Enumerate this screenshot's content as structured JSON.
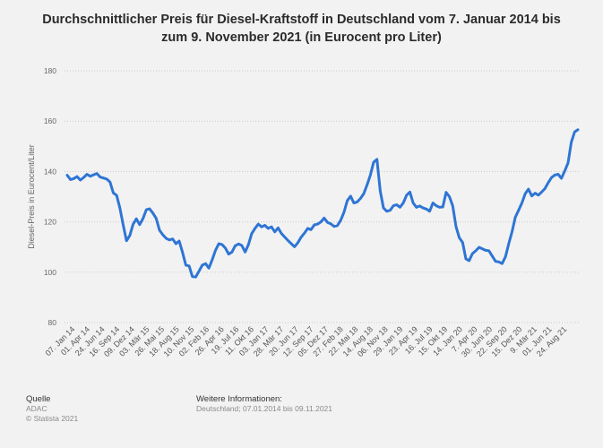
{
  "chart_data": {
    "type": "line",
    "title": "Durchschnittlicher Preis für Diesel-Kraftstoff in Deutschland vom 7. Januar 2014 bis zum 9. November 2021 (in Eurocent pro Liter)",
    "title_lines": [
      "Durchschnittlicher Preis für Diesel-Kraftstoff in Deutschland vom 7. Januar 2014 bis",
      "zum 9. November 2021 (in Eurocent pro Liter)"
    ],
    "xlabel": "",
    "ylabel": "Diesel-Preis in Eurocent/Liter",
    "ylim": [
      80,
      180
    ],
    "yticks": [
      80,
      100,
      120,
      140,
      160,
      180
    ],
    "grid": true,
    "line_color": "#2e75d4",
    "x_tick_labels": [
      "07. Jan 14",
      "01. Apr 14",
      "24. Jun 14",
      "16. Sep 14",
      "09. Dez 14",
      "03. Mär 15",
      "26. Mai 15",
      "18. Aug 15",
      "10. Nov 15",
      "02. Feb 16",
      "26. Apr 16",
      "19. Jul 16",
      "11. Okt 16",
      "03. Jan 17",
      "28. Mär 17",
      "20. Jun 17",
      "12. Sep 17",
      "05. Dez 17",
      "27. Feb 18",
      "22. Mai 18",
      "14. Aug 18",
      "06. Nov 18",
      "29. Jan 19",
      "23. Apr 19",
      "16. Jul 19",
      "15. Okt 19",
      "14. Jan 20",
      "7. Apr 20",
      "30. Juni 20",
      "22. Sep 20",
      "15. Dez 20",
      "9. Mär 21",
      "01. Jun 21",
      "24. Aug 21"
    ],
    "series": [
      {
        "name": "Diesel-Preis",
        "values": [
          138.5,
          136.8,
          137.2,
          138.0,
          136.6,
          137.6,
          138.9,
          138.1,
          138.7,
          139.2,
          137.8,
          137.4,
          137.0,
          135.8,
          131.5,
          130.5,
          125.5,
          118.8,
          112.5,
          114.6,
          119.0,
          121.2,
          118.9,
          121.3,
          124.8,
          125.2,
          123.5,
          121.4,
          116.7,
          114.9,
          113.5,
          112.8,
          113.2,
          111.3,
          112.4,
          107.9,
          102.8,
          102.5,
          98.3,
          98.1,
          100.4,
          102.8,
          103.4,
          101.6,
          104.9,
          108.7,
          111.3,
          111.0,
          109.6,
          107.2,
          108.0,
          110.5,
          111.2,
          110.6,
          108.0,
          111.0,
          115.3,
          117.4,
          119.1,
          118.0,
          118.6,
          117.4,
          118.0,
          116.0,
          117.6,
          115.4,
          114.0,
          112.6,
          111.3,
          110.1,
          111.7,
          113.9,
          115.5,
          117.4,
          116.9,
          118.8,
          119.1,
          120.0,
          121.5,
          119.8,
          119.2,
          118.2,
          118.5,
          120.6,
          123.8,
          128.4,
          130.2,
          127.5,
          127.9,
          129.3,
          131.2,
          134.6,
          138.5,
          143.7,
          144.8,
          132.2,
          125.5,
          124.2,
          124.6,
          126.4,
          126.8,
          125.8,
          127.5,
          130.6,
          131.8,
          127.5,
          125.8,
          126.3,
          125.5,
          125.1,
          124.2,
          127.5,
          126.4,
          125.8,
          125.9,
          131.7,
          130.0,
          126.3,
          118.2,
          113.7,
          111.8,
          105.3,
          104.6,
          107.4,
          108.5,
          109.9,
          109.3,
          108.7,
          108.5,
          106.4,
          104.3,
          104.1,
          103.4,
          106.1,
          111.3,
          116.1,
          121.8,
          124.6,
          127.5,
          131.2,
          133.0,
          130.3,
          131.4,
          130.6,
          131.8,
          133.2,
          135.6,
          137.6,
          138.6,
          138.9,
          137.3,
          140.2,
          143.4,
          151.6,
          155.7,
          156.6
        ]
      }
    ]
  },
  "footer": {
    "source_label": "Quelle",
    "source_value": "ADAC",
    "copyright": "© Statista 2021",
    "info_label": "Weitere Informationen:",
    "info_value": "Deutschland; 07.01.2014 bis 09.11.2021"
  }
}
